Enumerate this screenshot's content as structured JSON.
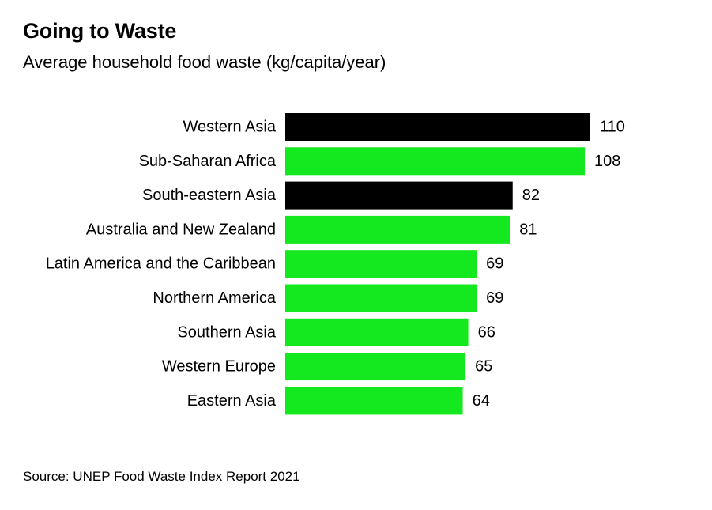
{
  "chart_data": {
    "type": "bar",
    "orientation": "horizontal",
    "title": "Going to Waste",
    "subtitle": "Average household food waste (kg/capita/year)",
    "xlabel": "",
    "ylabel": "",
    "xlim": [
      0,
      110
    ],
    "categories": [
      "Western Asia",
      "Sub-Saharan Africa",
      "South-eastern Asia",
      "Australia and New Zealand",
      "Latin America and the Caribbean",
      "Northern America",
      "Southern Asia",
      "Western Europe",
      "Eastern Asia"
    ],
    "values": [
      110,
      108,
      82,
      81,
      69,
      69,
      66,
      65,
      64
    ],
    "bar_colors": [
      "#000000",
      "#14e81e",
      "#000000",
      "#14e81e",
      "#14e81e",
      "#14e81e",
      "#14e81e",
      "#14e81e",
      "#14e81e"
    ],
    "grid": false,
    "legend": "none"
  },
  "source": "Source: UNEP Food Waste Index Report 2021"
}
